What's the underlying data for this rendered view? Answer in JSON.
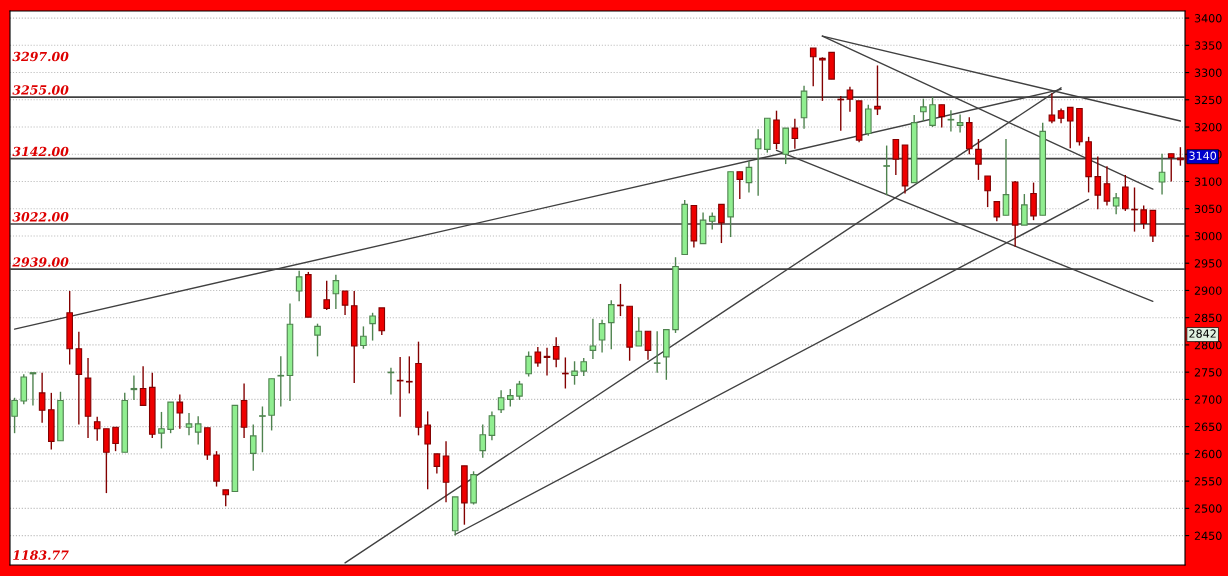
{
  "chart_data": {
    "type": "candlestick",
    "categories": [
      null,
      null,
      null,
      null,
      null,
      null,
      null,
      null,
      null,
      null,
      null,
      null,
      null,
      null,
      null,
      null,
      null,
      null,
      null,
      null,
      null,
      null,
      null,
      null,
      null,
      null,
      null,
      null,
      null,
      null,
      null,
      null,
      null,
      null,
      null,
      null,
      null,
      null,
      null,
      null,
      null,
      null,
      null,
      null,
      null,
      null,
      null,
      null,
      null,
      null,
      null,
      null,
      null,
      null,
      null,
      null,
      null,
      null,
      null,
      null,
      null,
      null,
      null,
      null,
      null,
      null,
      null,
      null,
      null,
      null,
      null,
      null,
      null,
      null,
      null,
      null,
      null,
      null,
      null,
      null,
      null,
      null,
      null,
      null,
      null,
      null,
      null,
      null,
      null,
      null,
      null,
      null,
      null,
      null,
      null,
      null,
      null,
      null,
      null,
      null,
      null,
      null,
      null,
      null,
      null,
      null,
      null,
      null,
      null,
      null,
      null,
      null,
      null,
      null,
      null,
      null,
      null,
      null,
      null,
      null,
      null,
      null,
      null,
      null,
      null,
      null,
      null,
      null
    ],
    "ohlc": [
      [
        2669,
        2703,
        2638,
        2698
      ],
      [
        2697,
        2746,
        2691,
        2741
      ],
      [
        2747,
        2749,
        2689,
        2749
      ],
      [
        2712,
        2749,
        2657,
        2680
      ],
      [
        2681,
        2712,
        2608,
        2623
      ],
      [
        2624,
        2714,
        2624,
        2698
      ],
      [
        2859,
        2899,
        2764,
        2793
      ],
      [
        2793,
        2824,
        2654,
        2746
      ],
      [
        2739,
        2776,
        2629,
        2669
      ],
      [
        2659,
        2668,
        2624,
        2646
      ],
      [
        2646,
        2646,
        2528,
        2603
      ],
      [
        2649,
        2649,
        2605,
        2619
      ],
      [
        2603,
        2712,
        2603,
        2698
      ],
      [
        2718,
        2744,
        2699,
        2720
      ],
      [
        2720,
        2761,
        2689,
        2689
      ],
      [
        2722,
        2749,
        2629,
        2636
      ],
      [
        2638,
        2677,
        2610,
        2646
      ],
      [
        2645,
        2695,
        2638,
        2695
      ],
      [
        2695,
        2709,
        2646,
        2675
      ],
      [
        2649,
        2675,
        2634,
        2655
      ],
      [
        2640,
        2669,
        2617,
        2655
      ],
      [
        2648,
        2648,
        2589,
        2598
      ],
      [
        2598,
        2605,
        2540,
        2550
      ],
      [
        2534,
        2534,
        2504,
        2525
      ],
      [
        2531,
        2689,
        2531,
        2689
      ],
      [
        2698,
        2729,
        2629,
        2649
      ],
      [
        2601,
        2654,
        2569,
        2633
      ],
      [
        2669,
        2687,
        2603,
        2670
      ],
      [
        2671,
        2738,
        2643,
        2738
      ],
      [
        2743,
        2779,
        2687,
        2744
      ],
      [
        2744,
        2876,
        2697,
        2838
      ],
      [
        2899,
        2936,
        2880,
        2925
      ],
      [
        2929,
        2934,
        2851,
        2851
      ],
      [
        2818,
        2839,
        2779,
        2834
      ],
      [
        2883,
        2918,
        2864,
        2867
      ],
      [
        2894,
        2929,
        2866,
        2918
      ],
      [
        2899,
        2899,
        2855,
        2873
      ],
      [
        2872,
        2899,
        2730,
        2798
      ],
      [
        2799,
        2834,
        2793,
        2816
      ],
      [
        2839,
        2859,
        2808,
        2853
      ],
      [
        2868,
        2868,
        2818,
        2826
      ],
      [
        2749,
        2758,
        2709,
        2750
      ],
      [
        2735,
        2778,
        2668,
        2734
      ],
      [
        2733,
        2779,
        2711,
        2732
      ],
      [
        2766,
        2806,
        2634,
        2649
      ],
      [
        2653,
        2678,
        2535,
        2618
      ],
      [
        2600,
        2600,
        2564,
        2577
      ],
      [
        2596,
        2623,
        2511,
        2548
      ],
      [
        2459,
        2521,
        2450,
        2521
      ],
      [
        2578,
        2578,
        2470,
        2510
      ],
      [
        2510,
        2568,
        2507,
        2562
      ],
      [
        2606,
        2654,
        2593,
        2635
      ],
      [
        2634,
        2678,
        2625,
        2670
      ],
      [
        2681,
        2717,
        2675,
        2703
      ],
      [
        2700,
        2719,
        2687,
        2707
      ],
      [
        2706,
        2734,
        2699,
        2728
      ],
      [
        2747,
        2788,
        2742,
        2779
      ],
      [
        2787,
        2796,
        2760,
        2767
      ],
      [
        2779,
        2795,
        2744,
        2777
      ],
      [
        2797,
        2814,
        2759,
        2774
      ],
      [
        2748,
        2777,
        2720,
        2747
      ],
      [
        2744,
        2770,
        2727,
        2752
      ],
      [
        2752,
        2776,
        2743,
        2769
      ],
      [
        2790,
        2848,
        2774,
        2798
      ],
      [
        2809,
        2846,
        2786,
        2839
      ],
      [
        2841,
        2882,
        2792,
        2874
      ],
      [
        2873,
        2912,
        2853,
        2872
      ],
      [
        2871,
        2871,
        2771,
        2796
      ],
      [
        2798,
        2851,
        2798,
        2825
      ],
      [
        2825,
        2825,
        2773,
        2790
      ],
      [
        2766,
        2825,
        2749,
        2767
      ],
      [
        2778,
        2828,
        2736,
        2828
      ],
      [
        2828,
        2961,
        2822,
        2944
      ],
      [
        2966,
        3066,
        2966,
        3058
      ],
      [
        3056,
        3056,
        2979,
        2991
      ],
      [
        2986,
        3043,
        2986,
        3029
      ],
      [
        3027,
        3043,
        3012,
        3036
      ],
      [
        3058,
        3058,
        2987,
        3024
      ],
      [
        3035,
        3118,
        2998,
        3118
      ],
      [
        3118,
        3118,
        3068,
        3104
      ],
      [
        3098,
        3137,
        3080,
        3126
      ],
      [
        3160,
        3196,
        3074,
        3178
      ],
      [
        3159,
        3216,
        3153,
        3216
      ],
      [
        3213,
        3230,
        3159,
        3170
      ],
      [
        3150,
        3198,
        3132,
        3198
      ],
      [
        3198,
        3215,
        3160,
        3179
      ],
      [
        3217,
        3276,
        3197,
        3266
      ],
      [
        3345,
        3345,
        3275,
        3329
      ],
      [
        3326,
        3328,
        3248,
        3323
      ],
      [
        3337,
        3337,
        3288,
        3288
      ],
      [
        3251,
        3257,
        3193,
        3250
      ],
      [
        3268,
        3274,
        3228,
        3251
      ],
      [
        3248,
        3248,
        3172,
        3176
      ],
      [
        3188,
        3241,
        3184,
        3233
      ],
      [
        3238,
        3313,
        3222,
        3233
      ],
      [
        3128,
        3166,
        3075,
        3129
      ],
      [
        3177,
        3177,
        3112,
        3141
      ],
      [
        3167,
        3167,
        3078,
        3092
      ],
      [
        3098,
        3222,
        3098,
        3208
      ],
      [
        3228,
        3252,
        3211,
        3237
      ],
      [
        3203,
        3255,
        3200,
        3241
      ],
      [
        3241,
        3241,
        3199,
        3219
      ],
      [
        3213,
        3231,
        3192,
        3214
      ],
      [
        3203,
        3223,
        3190,
        3208
      ],
      [
        3208,
        3218,
        3150,
        3160
      ],
      [
        3159,
        3178,
        3103,
        3132
      ],
      [
        3110,
        3110,
        3053,
        3083
      ],
      [
        3063,
        3063,
        3027,
        3035
      ],
      [
        3038,
        3178,
        3038,
        3076
      ],
      [
        3099,
        3101,
        2980,
        3020
      ],
      [
        3020,
        3077,
        3020,
        3057
      ],
      [
        3078,
        3098,
        3029,
        3037
      ],
      [
        3038,
        3208,
        3038,
        3192
      ],
      [
        3222,
        3262,
        3207,
        3211
      ],
      [
        3230,
        3234,
        3207,
        3216
      ],
      [
        3236,
        3236,
        3161,
        3211
      ],
      [
        3234,
        3234,
        3166,
        3173
      ],
      [
        3173,
        3182,
        3080,
        3109
      ],
      [
        3109,
        3146,
        3049,
        3075
      ],
      [
        3096,
        3128,
        3056,
        3064
      ],
      [
        3055,
        3079,
        3040,
        3070
      ],
      [
        3090,
        3112,
        3046,
        3050
      ],
      [
        3049,
        3089,
        3008,
        3048
      ],
      [
        3048,
        3056,
        3013,
        3023
      ],
      [
        3047,
        3047,
        2989,
        3000
      ],
      [
        3099,
        3151,
        3076,
        3117
      ],
      [
        3151,
        3151,
        3100,
        3144
      ],
      [
        3143,
        3163,
        3129,
        3140
      ]
    ],
    "colors": [
      "#90ee90",
      "#90ee90",
      "#90ee90",
      "#ee0000",
      "#ee0000",
      "#90ee90",
      "#ee0000",
      "#ee0000",
      "#ee0000",
      "#ee0000",
      "#ee0000",
      "#ee0000",
      "#90ee90",
      "#90ee90",
      "#ee0000",
      "#ee0000",
      "#90ee90",
      "#90ee90",
      "#ee0000",
      "#90ee90",
      "#90ee90",
      "#ee0000",
      "#ee0000",
      "#ee0000",
      "#90ee90",
      "#ee0000",
      "#90ee90",
      "#90ee90",
      "#90ee90",
      "#90ee90",
      "#90ee90",
      "#90ee90",
      "#ee0000",
      "#90ee90",
      "#ee0000",
      "#90ee90",
      "#ee0000",
      "#ee0000",
      "#90ee90",
      "#90ee90",
      "#ee0000",
      "#90ee90",
      "#ee0000",
      "#ee0000",
      "#ee0000",
      "#ee0000",
      "#ee0000",
      "#ee0000",
      "#90ee90",
      "#ee0000",
      "#90ee90",
      "#90ee90",
      "#90ee90",
      "#90ee90",
      "#90ee90",
      "#90ee90",
      "#90ee90",
      "#ee0000",
      "#ee0000",
      "#ee0000",
      "#ee0000",
      "#90ee90",
      "#90ee90",
      "#90ee90",
      "#90ee90",
      "#90ee90",
      "#ee0000",
      "#ee0000",
      "#90ee90",
      "#ee0000",
      "#90ee90",
      "#90ee90",
      "#90ee90",
      "#90ee90",
      "#ee0000",
      "#90ee90",
      "#90ee90",
      "#ee0000",
      "#90ee90",
      "#ee0000",
      "#90ee90",
      "#90ee90",
      "#90ee90",
      "#ee0000",
      "#90ee90",
      "#ee0000",
      "#90ee90",
      "#ee0000",
      "#ee0000",
      "#ee0000",
      "#ee0000",
      "#ee0000",
      "#ee0000",
      "#90ee90",
      "#ee0000",
      "#90ee90",
      "#ee0000",
      "#ee0000",
      "#90ee90",
      "#90ee90",
      "#90ee90",
      "#ee0000",
      "#90ee90",
      "#90ee90",
      "#ee0000",
      "#ee0000",
      "#ee0000",
      "#ee0000",
      "#90ee90",
      "#ee0000",
      "#90ee90",
      "#ee0000",
      "#90ee90",
      "#ee0000",
      "#ee0000",
      "#ee0000",
      "#ee0000",
      "#ee0000",
      "#ee0000",
      "#ee0000",
      "#90ee90",
      "#ee0000",
      "#ee0000",
      "#ee0000",
      "#ee0000",
      "#90ee90",
      "#ee0000",
      "#ee0000"
    ],
    "series": [
      {
        "type": "line",
        "color": "#404040",
        "values": [
          2829,
          null,
          null,
          null,
          null,
          null,
          null,
          null,
          null,
          null,
          null,
          null,
          null,
          null,
          null,
          null,
          null,
          null,
          null,
          null,
          null,
          null,
          null,
          null,
          null,
          null,
          null,
          null,
          null,
          null,
          null,
          null,
          null,
          null,
          null,
          null,
          null,
          null,
          null,
          null,
          null,
          null,
          null,
          null,
          null,
          null,
          null,
          null,
          null,
          null,
          null,
          null,
          null,
          null,
          null,
          null,
          null,
          null,
          null,
          null,
          null,
          null,
          null,
          null,
          null,
          null,
          null,
          null,
          null,
          null,
          null,
          null,
          null,
          null,
          null,
          null,
          null,
          null,
          null,
          null,
          null,
          null,
          null,
          null,
          null,
          null,
          null,
          null,
          null,
          null,
          null,
          null,
          null,
          null,
          null,
          null,
          null,
          null,
          null,
          null,
          null,
          null,
          null,
          null,
          null,
          null,
          null,
          null,
          null,
          null,
          null,
          null,
          null,
          null,
          3269,
          null,
          null,
          null,
          null,
          null,
          null,
          null,
          null,
          null,
          null,
          null,
          null,
          null
        ]
      },
      {
        "type": "line",
        "color": "#404040",
        "values": [
          null,
          null,
          null,
          null,
          null,
          null,
          null,
          null,
          null,
          null,
          null,
          null,
          null,
          null,
          null,
          null,
          null,
          null,
          null,
          null,
          null,
          null,
          null,
          null,
          null,
          null,
          null,
          null,
          null,
          null,
          null,
          null,
          null,
          null,
          null,
          null,
          2400,
          null,
          null,
          null,
          null,
          null,
          null,
          null,
          null,
          null,
          null,
          null,
          null,
          null,
          null,
          null,
          null,
          null,
          null,
          null,
          null,
          null,
          null,
          null,
          null,
          null,
          null,
          null,
          null,
          null,
          null,
          null,
          null,
          null,
          null,
          null,
          null,
          null,
          null,
          null,
          null,
          null,
          null,
          null,
          null,
          null,
          null,
          null,
          null,
          null,
          null,
          null,
          null,
          null,
          null,
          null,
          null,
          null,
          null,
          null,
          null,
          null,
          null,
          null,
          null,
          null,
          null,
          null,
          null,
          null,
          null,
          null,
          null,
          null,
          null,
          null,
          null,
          null,
          3272,
          null,
          null,
          null,
          null,
          null,
          null,
          null,
          null,
          null,
          null,
          null,
          null,
          null
        ]
      },
      {
        "type": "line",
        "color": "#404040",
        "values": [
          null,
          null,
          null,
          null,
          null,
          null,
          null,
          null,
          null,
          null,
          null,
          null,
          null,
          null,
          null,
          null,
          null,
          null,
          null,
          null,
          null,
          null,
          null,
          null,
          null,
          null,
          null,
          null,
          null,
          null,
          null,
          null,
          null,
          null,
          null,
          null,
          null,
          null,
          null,
          null,
          null,
          null,
          null,
          null,
          null,
          null,
          null,
          null,
          2452,
          null,
          null,
          null,
          null,
          null,
          null,
          null,
          null,
          null,
          null,
          null,
          null,
          null,
          null,
          null,
          null,
          null,
          null,
          null,
          null,
          null,
          null,
          null,
          null,
          null,
          null,
          null,
          null,
          null,
          null,
          null,
          null,
          null,
          null,
          null,
          null,
          null,
          null,
          null,
          null,
          null,
          null,
          null,
          null,
          null,
          null,
          null,
          null,
          null,
          null,
          null,
          null,
          null,
          null,
          null,
          null,
          null,
          null,
          null,
          null,
          null,
          null,
          null,
          null,
          null,
          null,
          null,
          null,
          3067,
          null,
          null,
          null,
          null,
          null,
          null,
          null,
          null,
          null,
          null
        ]
      },
      {
        "type": "line",
        "color": "#404040",
        "values": [
          null,
          null,
          null,
          null,
          null,
          null,
          null,
          null,
          null,
          null,
          null,
          null,
          null,
          null,
          null,
          null,
          null,
          null,
          null,
          null,
          null,
          null,
          null,
          null,
          null,
          null,
          null,
          null,
          null,
          null,
          null,
          null,
          null,
          null,
          null,
          null,
          null,
          null,
          null,
          null,
          null,
          null,
          null,
          null,
          null,
          null,
          null,
          null,
          null,
          null,
          null,
          null,
          null,
          null,
          null,
          null,
          null,
          null,
          null,
          null,
          null,
          null,
          null,
          null,
          null,
          null,
          null,
          null,
          null,
          null,
          null,
          null,
          null,
          null,
          null,
          null,
          null,
          null,
          null,
          null,
          null,
          null,
          null,
          null,
          null,
          null,
          null,
          null,
          3367,
          null,
          null,
          null,
          null,
          null,
          null,
          null,
          null,
          null,
          null,
          null,
          null,
          null,
          null,
          null,
          null,
          null,
          null,
          null,
          null,
          null,
          null,
          null,
          null,
          null,
          null,
          null,
          null,
          null,
          null,
          null,
          null,
          null,
          null,
          null,
          null,
          null,
          null,
          3211
        ]
      },
      {
        "type": "line",
        "color": "#404040",
        "values": [
          null,
          null,
          null,
          null,
          null,
          null,
          null,
          null,
          null,
          null,
          null,
          null,
          null,
          null,
          null,
          null,
          null,
          null,
          null,
          null,
          null,
          null,
          null,
          null,
          null,
          null,
          null,
          null,
          null,
          null,
          null,
          null,
          null,
          null,
          null,
          null,
          null,
          null,
          null,
          null,
          null,
          null,
          null,
          null,
          null,
          null,
          null,
          null,
          null,
          null,
          null,
          null,
          null,
          null,
          null,
          null,
          null,
          null,
          null,
          null,
          null,
          null,
          null,
          null,
          null,
          null,
          null,
          null,
          null,
          null,
          null,
          null,
          null,
          null,
          null,
          null,
          null,
          null,
          null,
          null,
          null,
          null,
          null,
          null,
          null,
          null,
          null,
          null,
          3367,
          null,
          null,
          null,
          null,
          null,
          null,
          null,
          null,
          null,
          null,
          null,
          null,
          null,
          null,
          null,
          null,
          null,
          null,
          null,
          null,
          null,
          null,
          null,
          null,
          null,
          null,
          null,
          null,
          null,
          null,
          null,
          null,
          null,
          null,
          null,
          3086,
          null,
          null,
          null
        ]
      },
      {
        "type": "line",
        "color": "#404040",
        "values": [
          null,
          null,
          null,
          null,
          null,
          null,
          null,
          null,
          null,
          null,
          null,
          null,
          null,
          null,
          null,
          null,
          null,
          null,
          null,
          null,
          null,
          null,
          null,
          null,
          null,
          null,
          null,
          null,
          null,
          null,
          null,
          null,
          null,
          null,
          null,
          null,
          null,
          null,
          null,
          null,
          null,
          null,
          null,
          null,
          null,
          null,
          null,
          null,
          null,
          null,
          null,
          null,
          null,
          null,
          null,
          null,
          null,
          null,
          null,
          null,
          null,
          null,
          null,
          null,
          null,
          null,
          null,
          null,
          null,
          null,
          null,
          null,
          null,
          null,
          null,
          null,
          null,
          null,
          null,
          null,
          null,
          null,
          null,
          3157,
          null,
          null,
          null,
          null,
          null,
          null,
          null,
          null,
          null,
          null,
          null,
          null,
          null,
          null,
          null,
          null,
          null,
          null,
          null,
          null,
          null,
          null,
          null,
          null,
          null,
          null,
          null,
          null,
          null,
          null,
          null,
          null,
          null,
          null,
          null,
          null,
          null,
          null,
          null,
          null,
          2880,
          null,
          null,
          null
        ]
      }
    ],
    "ylim": [
      2396,
      3413
    ],
    "yticks": [
      2450,
      2500,
      2550,
      2600,
      2650,
      2700,
      2750,
      2800,
      2850,
      2900,
      2950,
      3000,
      3050,
      3100,
      3150,
      3200,
      3250,
      3300,
      3350,
      3400
    ],
    "tick_labels": "y",
    "grid": "y",
    "ref_lines": [
      {
        "axis": "y",
        "value": 3255,
        "label": "3255.00",
        "color": "#404040"
      },
      {
        "axis": "y",
        "value": 3142,
        "label": "3142.00",
        "color": "#404040"
      },
      {
        "axis": "y",
        "value": 3022,
        "label": "3022.00",
        "color": "#404040"
      },
      {
        "axis": "y",
        "value": 2939,
        "label": "2939.00",
        "color": "#404040"
      }
    ],
    "annotations": [
      "3297.00",
      "1183.77",
      "3140",
      "2842"
    ]
  }
}
